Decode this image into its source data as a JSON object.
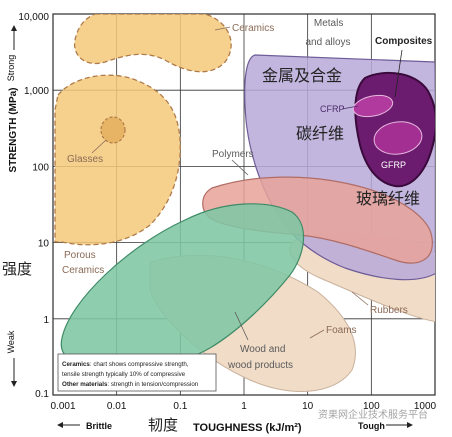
{
  "chart_data": {
    "type": "area",
    "title": "",
    "xlabel": "TOUGHNESS (kJ/m²)",
    "xlabel_cn": "韧度",
    "ylabel": "STRENGTH (MPa)",
    "ylabel_cn": "强度",
    "x_scale": "log",
    "y_scale": "log",
    "xlim": [
      0.001,
      1000
    ],
    "ylim": [
      0.1,
      10000
    ],
    "grid": true,
    "x_ticks": [
      "0.001",
      "0.01",
      "0.1",
      "1",
      "10",
      "100",
      "1000"
    ],
    "y_ticks": [
      "0.1",
      "1",
      "10",
      "100",
      "1,000",
      "10,000"
    ],
    "y_strong_label": "Strong",
    "y_weak_label": "Weak",
    "x_brittle_label": "Brittle",
    "x_tough_label": "Tough",
    "regions": [
      {
        "name": "Ceramics",
        "fill": "#f5c97a",
        "border": "dashed"
      },
      {
        "name": "Glasses",
        "fill": "#f5c97a",
        "border": "dashed"
      },
      {
        "name": "Porous Ceramics",
        "fill": "#f5c97a",
        "border": "dashed"
      },
      {
        "name": "Metals and alloys",
        "name_cn": "金属及合金",
        "fill": "#b9a9d8",
        "border": "solid"
      },
      {
        "name": "Composites",
        "fill": "#6b1c6e",
        "border": "solid"
      },
      {
        "name": "CFRP",
        "name_cn": "碳纤维",
        "fill": "#9c2b8e",
        "border": "solid"
      },
      {
        "name": "GFRP",
        "name_cn": "玻璃纤维",
        "fill": "#9c2b8e",
        "border": "solid"
      },
      {
        "name": "Polymers",
        "fill": "#e7a39a",
        "border": "solid"
      },
      {
        "name": "Rubbers",
        "fill": "#f1dcc8",
        "border": "solid"
      },
      {
        "name": "Foams",
        "fill": "#f1dcc8",
        "border": "solid"
      },
      {
        "name": "Wood and wood products",
        "fill": "#7fc6a4",
        "border": "solid"
      }
    ],
    "notes": [
      {
        "bold": "Ceramics",
        "text": ": chart shows compressive strength,"
      },
      {
        "bold": "",
        "text": "tensile strength typically 10% of compressive"
      },
      {
        "bold": "Other materials",
        "text": ": strength in tension/compression"
      }
    ],
    "watermark": "资果网企业技术服务平台"
  }
}
